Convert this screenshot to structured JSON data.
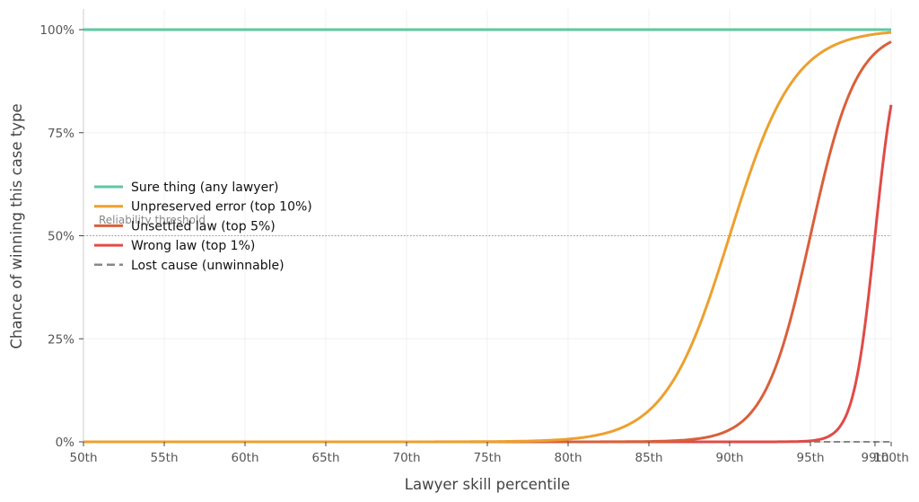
{
  "chart_data": {
    "type": "line",
    "title": "",
    "xlabel": "Lawyer skill percentile",
    "ylabel": "Chance of winning this case type",
    "xlim": [
      50,
      100
    ],
    "ylim": [
      0,
      1.05
    ],
    "grid": true,
    "legend_position": "center-left",
    "x_ticks": [
      50,
      55,
      60,
      65,
      70,
      75,
      80,
      85,
      90,
      95,
      99,
      100
    ],
    "x_tick_labels": [
      "50th",
      "55th",
      "60th",
      "65th",
      "70th",
      "75th",
      "80th",
      "85th",
      "90th",
      "95th",
      "99th",
      "100th"
    ],
    "y_ticks": [
      0,
      0.25,
      0.5,
      0.75,
      1.0
    ],
    "y_tick_labels": [
      "0%",
      "25%",
      "50%",
      "75%",
      "100%"
    ],
    "x": [
      50,
      55,
      60,
      65,
      70,
      75,
      80,
      82,
      84,
      85,
      86,
      87,
      88,
      89,
      90,
      91,
      92,
      93,
      94,
      95,
      96,
      97,
      98,
      99,
      100
    ],
    "series": [
      {
        "name": "Sure thing (any lawyer)",
        "color": "#5ec8a0",
        "style": "solid",
        "model": {
          "kind": "constant",
          "value": 1.0
        },
        "values": [
          1,
          1,
          1,
          1,
          1,
          1,
          1,
          1,
          1,
          1,
          1,
          1,
          1,
          1,
          1,
          1,
          1,
          1,
          1,
          1,
          1,
          1,
          1,
          1,
          1
        ]
      },
      {
        "name": "Unpreserved error (top 10%)",
        "color": "#eda02e",
        "style": "solid",
        "model": {
          "kind": "logistic",
          "midpoint": 90,
          "k": 0.5
        },
        "values": [
          0.0,
          0.0,
          0.0,
          0.0,
          0.0,
          0.0,
          0.01,
          0.02,
          0.05,
          0.08,
          0.12,
          0.18,
          0.27,
          0.38,
          0.5,
          0.62,
          0.73,
          0.82,
          0.88,
          0.92,
          0.95,
          0.97,
          0.98,
          0.99,
          0.99
        ]
      },
      {
        "name": "Unsettled law (top 5%)",
        "color": "#d9603b",
        "style": "solid",
        "model": {
          "kind": "logistic",
          "midpoint": 95,
          "k": 0.7
        },
        "values": [
          0.0,
          0.0,
          0.0,
          0.0,
          0.0,
          0.0,
          0.0,
          0.0,
          0.0,
          0.0,
          0.0,
          0.01,
          0.01,
          0.01,
          0.03,
          0.06,
          0.11,
          0.2,
          0.33,
          0.5,
          0.67,
          0.8,
          0.89,
          0.94,
          0.97
        ]
      },
      {
        "name": "Wrong law (top 1%)",
        "color": "#e04b47",
        "style": "solid",
        "model": {
          "kind": "logistic",
          "midpoint": 99,
          "k": 1.5
        },
        "values": [
          0.0,
          0.0,
          0.0,
          0.0,
          0.0,
          0.0,
          0.0,
          0.0,
          0.0,
          0.0,
          0.0,
          0.0,
          0.0,
          0.0,
          0.0,
          0.0,
          0.0,
          0.0,
          0.0,
          0.0,
          0.01,
          0.05,
          0.18,
          0.5,
          0.82
        ]
      },
      {
        "name": "Lost cause (unwinnable)",
        "color": "#888888",
        "style": "dashed",
        "model": {
          "kind": "constant",
          "value": 0.0
        },
        "values": [
          0,
          0,
          0,
          0,
          0,
          0,
          0,
          0,
          0,
          0,
          0,
          0,
          0,
          0,
          0,
          0,
          0,
          0,
          0,
          0,
          0,
          0,
          0,
          0,
          0
        ]
      }
    ],
    "annotations": [
      {
        "type": "hline",
        "y": 0.5,
        "style": "dotted",
        "color": "#999999",
        "label": "Reliability threshold"
      }
    ]
  }
}
